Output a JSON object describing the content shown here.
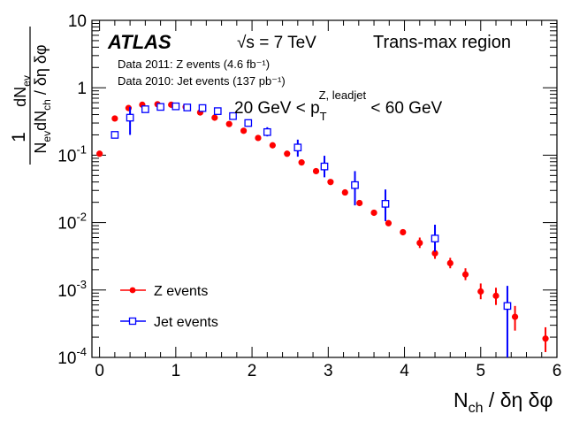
{
  "chart_data": {
    "type": "scatter",
    "title": "",
    "experiment": "ATLAS",
    "energy_label": "√s = 7 TeV",
    "region_label": "Trans-max region",
    "data_notes": [
      "Data 2011: Z events (4.6 fb⁻¹)",
      "Data 2010: Jet events (137 pb⁻¹)"
    ],
    "cut_label": {
      "prefix": "20 GeV < p",
      "sub": "T",
      "sup": "Z, leadjet",
      "suffix": " < 60 GeV"
    },
    "xlabel": "N_ch / δη δφ",
    "ylabel": "1/N_ev dN_ev/dN_ch / δη δφ",
    "ylabel_parts": {
      "num_prefix": "dN",
      "num_sub": "ev",
      "one": "1",
      "den_n": "N",
      "den_sub1": "ev",
      "den_mid": "dN",
      "den_sub2": "ch",
      "den_tail": " / δη δφ"
    },
    "xlim": [
      -0.1,
      6.0
    ],
    "ylim": [
      0.0001,
      10
    ],
    "yscale": "log",
    "xticks": [
      0,
      1,
      2,
      3,
      4,
      5,
      6
    ],
    "xtick_labels": [
      "0",
      "1",
      "2",
      "3",
      "4",
      "5",
      "6"
    ],
    "yticks": [
      {
        "value": 10,
        "base": "10",
        "exp": ""
      },
      {
        "value": 1,
        "base": "1",
        "exp": ""
      },
      {
        "value": 0.1,
        "base": "10",
        "exp": "-1"
      },
      {
        "value": 0.01,
        "base": "10",
        "exp": "-2"
      },
      {
        "value": 0.001,
        "base": "10",
        "exp": "-3"
      },
      {
        "value": 0.0001,
        "base": "10",
        "exp": "-4"
      }
    ],
    "grid": false,
    "legend_position": "bottom-left",
    "series": [
      {
        "name": "Z events",
        "color": "#ff0000",
        "marker": "filled-circle",
        "points": [
          {
            "x": 0.0,
            "y": 0.105
          },
          {
            "x": 0.2,
            "y": 0.35
          },
          {
            "x": 0.38,
            "y": 0.5
          },
          {
            "x": 0.56,
            "y": 0.56
          },
          {
            "x": 0.76,
            "y": 0.57
          },
          {
            "x": 0.94,
            "y": 0.56
          },
          {
            "x": 1.13,
            "y": 0.52
          },
          {
            "x": 1.32,
            "y": 0.43
          },
          {
            "x": 1.51,
            "y": 0.36
          },
          {
            "x": 1.7,
            "y": 0.29
          },
          {
            "x": 1.89,
            "y": 0.23
          },
          {
            "x": 2.08,
            "y": 0.18
          },
          {
            "x": 2.27,
            "y": 0.14
          },
          {
            "x": 2.46,
            "y": 0.105
          },
          {
            "x": 2.65,
            "y": 0.078
          },
          {
            "x": 2.84,
            "y": 0.058
          },
          {
            "x": 3.03,
            "y": 0.04
          },
          {
            "x": 3.22,
            "y": 0.028
          },
          {
            "x": 3.41,
            "y": 0.0195
          },
          {
            "x": 3.6,
            "y": 0.014
          },
          {
            "x": 3.79,
            "y": 0.0098
          },
          {
            "x": 3.98,
            "y": 0.0072
          },
          {
            "x": 4.2,
            "y": 0.005,
            "err_lo": 0.0042,
            "err_hi": 0.006
          },
          {
            "x": 4.4,
            "y": 0.0035,
            "err_lo": 0.0029,
            "err_hi": 0.0043
          },
          {
            "x": 4.6,
            "y": 0.0025,
            "err_lo": 0.0021,
            "err_hi": 0.003
          },
          {
            "x": 4.8,
            "y": 0.0017,
            "err_lo": 0.0014,
            "err_hi": 0.0021
          },
          {
            "x": 5.0,
            "y": 0.00095,
            "err_lo": 0.00073,
            "err_hi": 0.00125
          },
          {
            "x": 5.2,
            "y": 0.00082,
            "err_lo": 0.0006,
            "err_hi": 0.00108
          },
          {
            "x": 5.45,
            "y": 0.0004,
            "err_lo": 0.00025,
            "err_hi": 0.00058
          },
          {
            "x": 5.85,
            "y": 0.00019,
            "err_lo": 0.00012,
            "err_hi": 0.00028
          }
        ]
      },
      {
        "name": "Jet events",
        "color": "#0000ff",
        "marker": "open-square",
        "points": [
          {
            "x": 0.2,
            "y": 0.2
          },
          {
            "x": 0.4,
            "y": 0.36,
            "err_lo": 0.2,
            "err_hi": 0.52
          },
          {
            "x": 0.6,
            "y": 0.48
          },
          {
            "x": 0.8,
            "y": 0.52
          },
          {
            "x": 1.0,
            "y": 0.53
          },
          {
            "x": 1.15,
            "y": 0.51
          },
          {
            "x": 1.35,
            "y": 0.5
          },
          {
            "x": 1.55,
            "y": 0.45
          },
          {
            "x": 1.75,
            "y": 0.38
          },
          {
            "x": 1.95,
            "y": 0.3
          },
          {
            "x": 2.2,
            "y": 0.22,
            "err_lo": 0.19,
            "err_hi": 0.26
          },
          {
            "x": 2.6,
            "y": 0.13,
            "err_lo": 0.095,
            "err_hi": 0.17
          },
          {
            "x": 2.95,
            "y": 0.068,
            "err_lo": 0.047,
            "err_hi": 0.098
          },
          {
            "x": 3.35,
            "y": 0.036,
            "err_lo": 0.018,
            "err_hi": 0.058
          },
          {
            "x": 3.75,
            "y": 0.019,
            "err_lo": 0.0105,
            "err_hi": 0.031
          },
          {
            "x": 4.4,
            "y": 0.0058,
            "err_lo": 0.0037,
            "err_hi": 0.0093
          },
          {
            "x": 5.35,
            "y": 0.00058,
            "err_lo": 0.0001,
            "err_hi": 0.00115
          }
        ]
      }
    ]
  }
}
